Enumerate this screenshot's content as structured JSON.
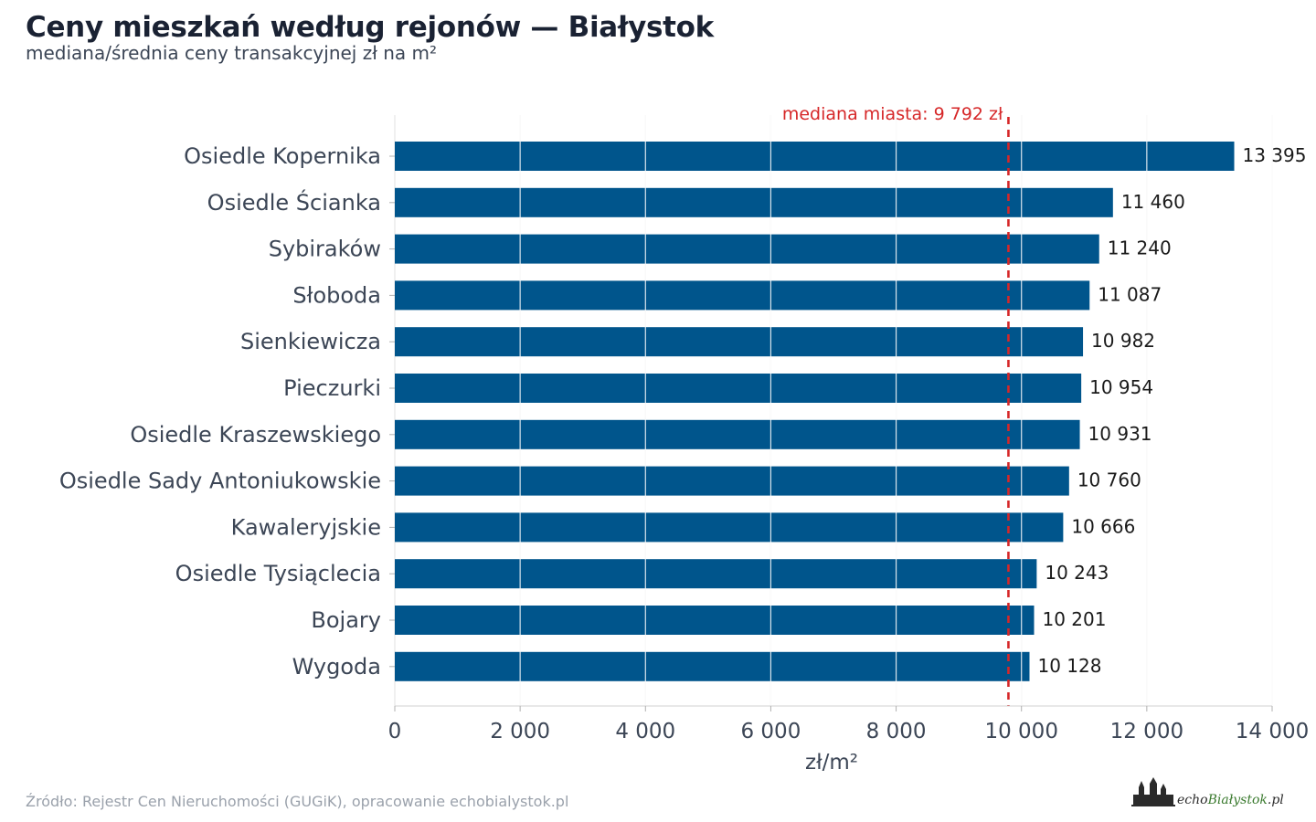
{
  "header": {
    "title": "Ceny mieszkań według rejonów — Białystok",
    "subtitle": "mediana/średnia ceny transakcyjnej zł na m²"
  },
  "footer": {
    "source": "Źródło: Rejestr Cen Nieruchomości (GUGiK), opracowanie echobialystok.pl",
    "logo_part1": "echo",
    "logo_part2": "Białystok",
    "logo_part3": ".pl"
  },
  "colors": {
    "bar": "#00558c",
    "median_line": "#d62728",
    "axis_text": "#3c4656",
    "grid": "#e6e6e6"
  },
  "chart_data": {
    "type": "bar",
    "orientation": "horizontal",
    "categories": [
      "Osiedle Kopernika",
      "Osiedle Ścianka",
      "Sybiraków",
      "Słoboda",
      "Sienkiewicza",
      "Pieczurki",
      "Osiedle Kraszewskiego",
      "Osiedle Sady Antoniukowskie",
      "Kawaleryjskie",
      "Osiedle Tysiąclecia",
      "Bojary",
      "Wygoda"
    ],
    "values": [
      13395,
      11460,
      11240,
      11087,
      10982,
      10954,
      10931,
      10760,
      10666,
      10243,
      10201,
      10128
    ],
    "value_labels": [
      "13 395",
      "11 460",
      "11 240",
      "11 087",
      "10 982",
      "10 954",
      "10 931",
      "10 760",
      "10 666",
      "10 243",
      "10 201",
      "10 128"
    ],
    "xlim": [
      0,
      14000
    ],
    "x_ticks": [
      0,
      2000,
      4000,
      6000,
      8000,
      10000,
      12000,
      14000
    ],
    "x_tick_labels": [
      "0",
      "2 000",
      "4 000",
      "6 000",
      "8 000",
      "10 000",
      "12 000",
      "14 000"
    ],
    "xlabel": "zł/m²",
    "ylabel": "",
    "grid": true,
    "reference_line": {
      "value": 9792,
      "label": "mediana miasta: 9 792 zł"
    }
  }
}
